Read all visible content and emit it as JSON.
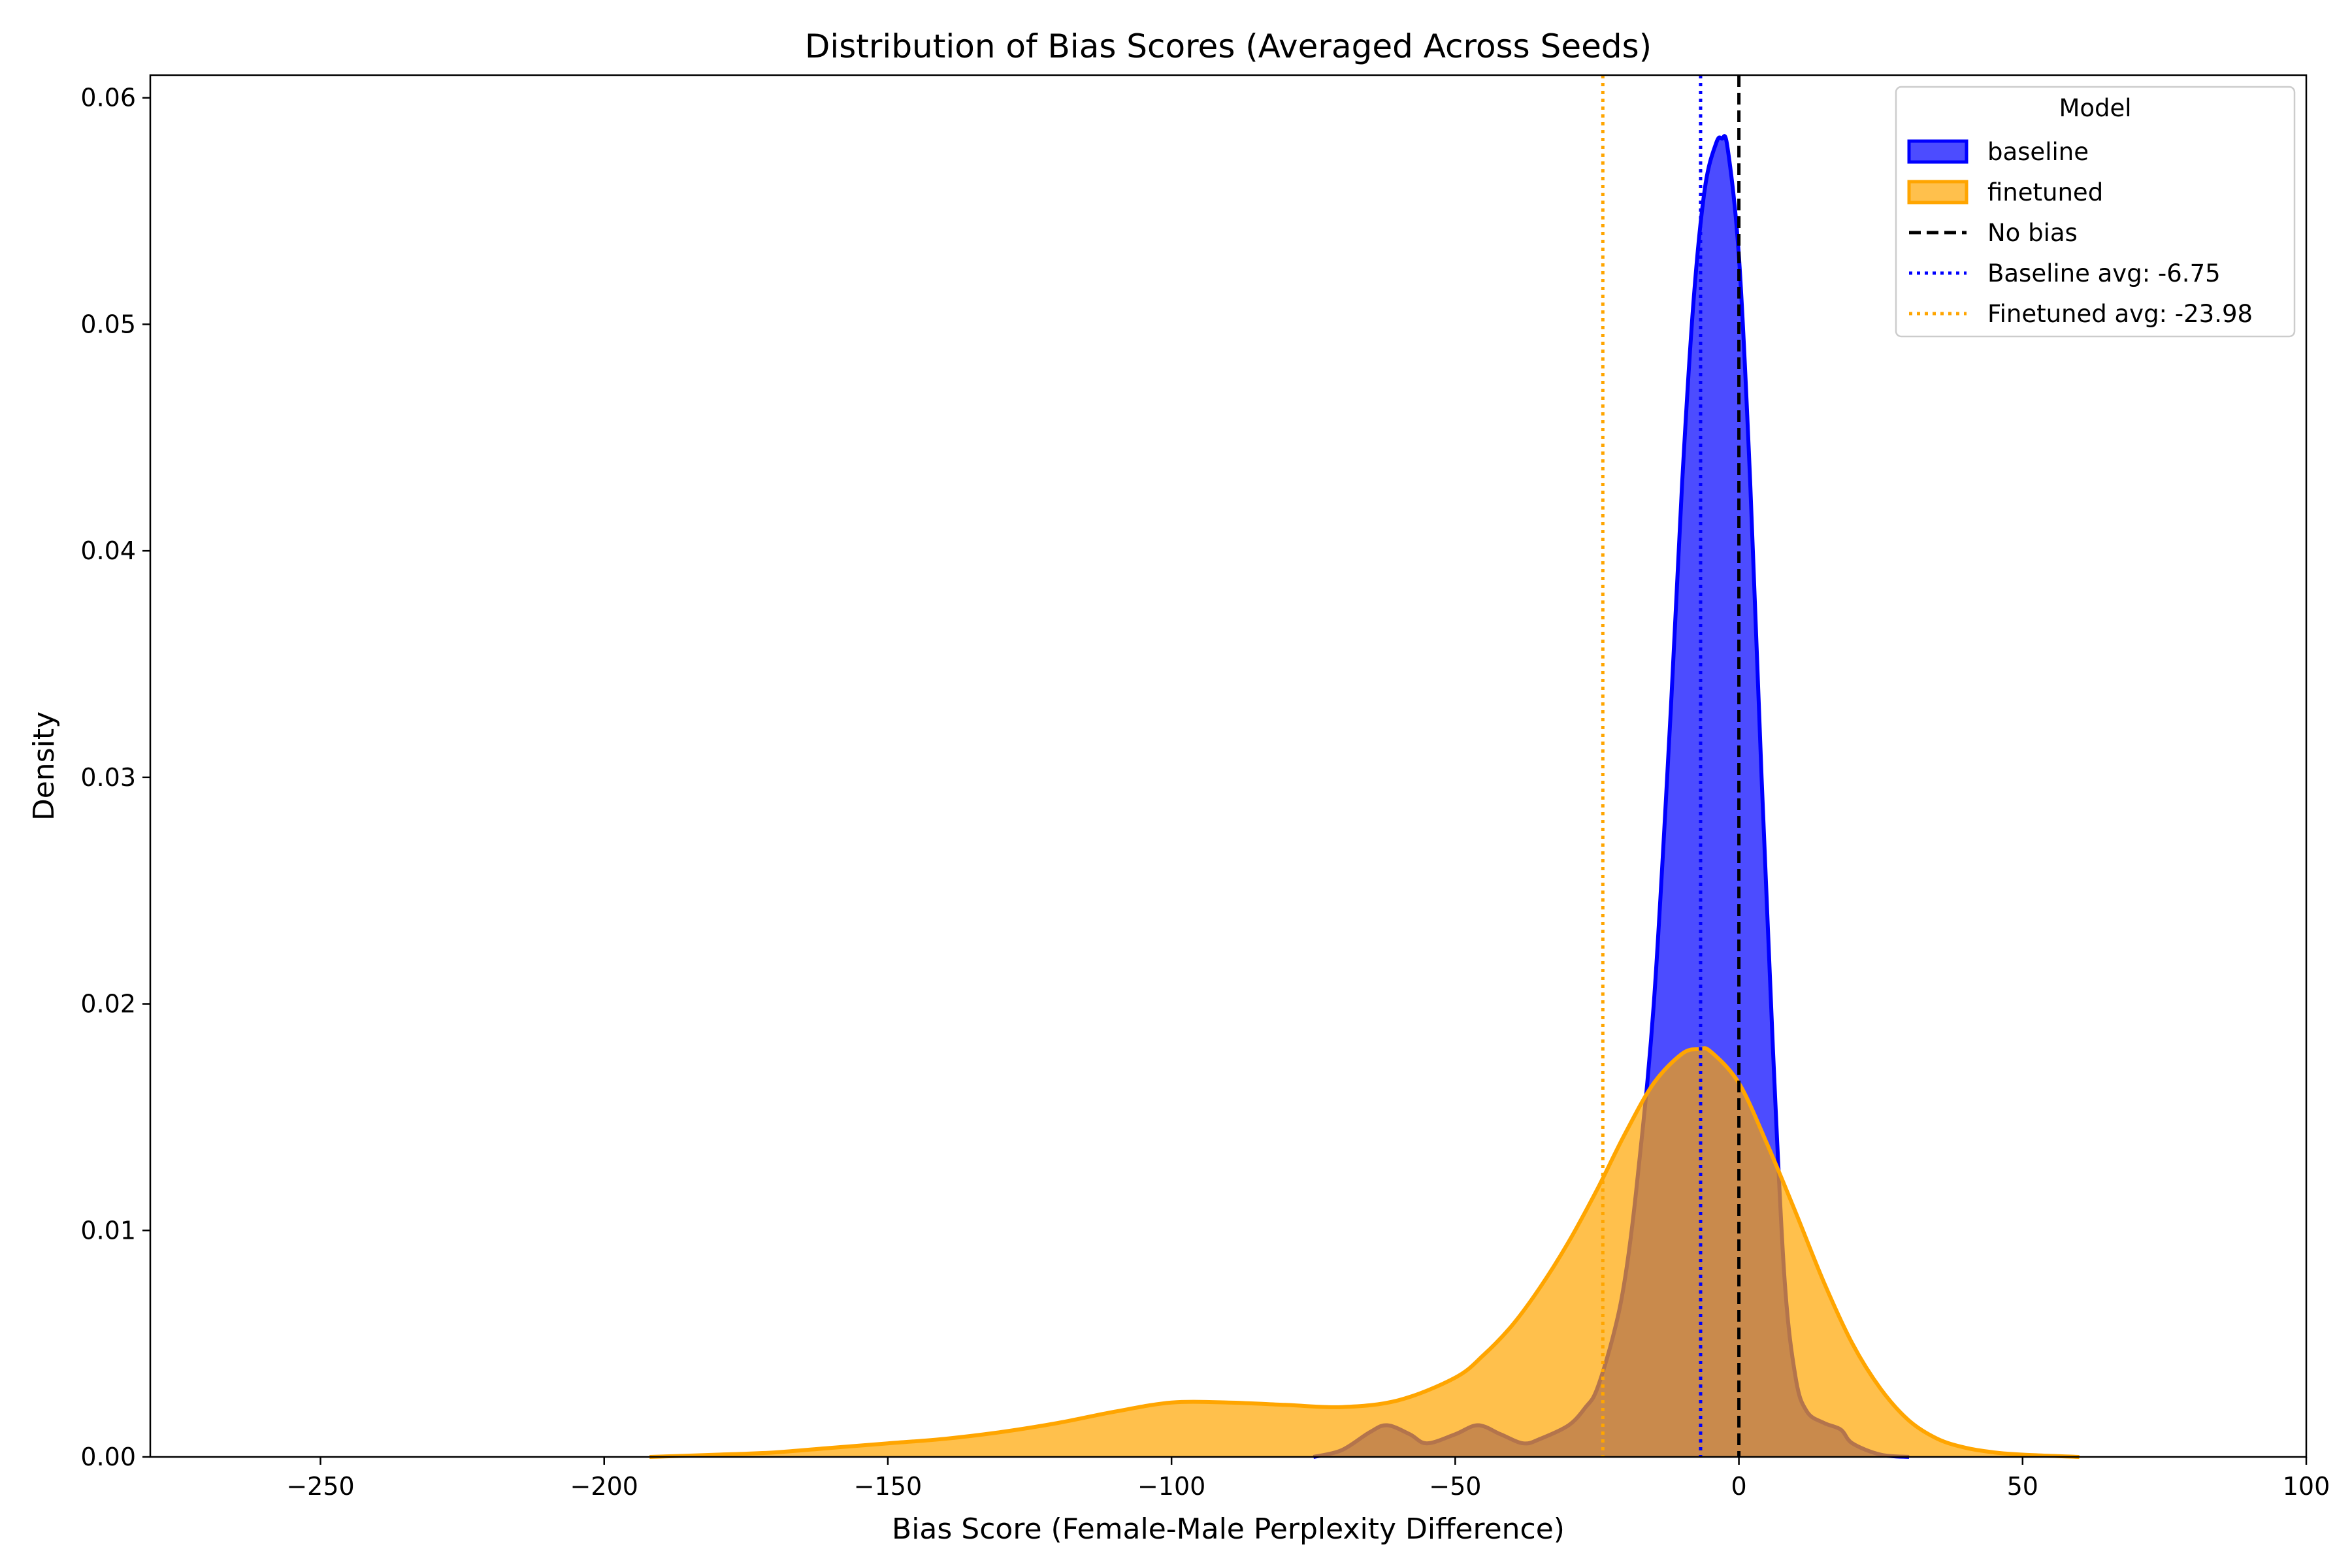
{
  "chart_data": {
    "type": "area",
    "title": "Distribution of Bias Scores (Averaged Across Seeds)",
    "xlabel": "Bias Score (Female-Male Perplexity Difference)",
    "ylabel": "Density",
    "xlim": [
      -280,
      100
    ],
    "ylim": [
      0,
      0.061
    ],
    "x_ticks": [
      -250,
      -200,
      -150,
      -100,
      -50,
      0,
      50,
      100
    ],
    "x_tick_labels": [
      "−250",
      "−200",
      "−150",
      "−100",
      "−50",
      "0",
      "50",
      "100"
    ],
    "y_ticks": [
      0.0,
      0.01,
      0.02,
      0.03,
      0.04,
      0.05,
      0.06
    ],
    "y_tick_labels": [
      "0.00",
      "0.01",
      "0.02",
      "0.03",
      "0.04",
      "0.05",
      "0.06"
    ],
    "grid": false,
    "legend": {
      "title": "Model",
      "position": "top-right",
      "entries": [
        {
          "label": "baseline",
          "kind": "patch",
          "color": "#0000ff"
        },
        {
          "label": "finetuned",
          "kind": "patch",
          "color": "#ffa500"
        },
        {
          "label": "No bias",
          "kind": "line",
          "style": "dashed",
          "color": "#000000"
        },
        {
          "label": "Baseline avg: -6.75",
          "kind": "line",
          "style": "dotted",
          "color": "#0000ff"
        },
        {
          "label": "Finetuned avg: -23.98",
          "kind": "line",
          "style": "dotted",
          "color": "#ffa500"
        }
      ]
    },
    "series": [
      {
        "name": "baseline",
        "color": "#0000ff",
        "fill_opacity": 0.7,
        "x": [
          -75,
          -70,
          -65,
          -62,
          -58,
          -55,
          -50,
          -46,
          -42,
          -38,
          -35,
          -30,
          -27,
          -25,
          -22,
          -20,
          -18,
          -15,
          -12,
          -10,
          -8,
          -6,
          -4,
          -3,
          -2,
          0,
          2,
          4,
          6,
          8,
          10,
          12,
          15,
          18,
          20,
          25,
          30
        ],
        "y": [
          0.0,
          0.0003,
          0.0011,
          0.0014,
          0.001,
          0.0006,
          0.001,
          0.0014,
          0.001,
          0.0006,
          0.0008,
          0.0014,
          0.0022,
          0.003,
          0.0055,
          0.008,
          0.012,
          0.02,
          0.033,
          0.043,
          0.051,
          0.056,
          0.058,
          0.0582,
          0.0578,
          0.053,
          0.043,
          0.03,
          0.018,
          0.008,
          0.0035,
          0.002,
          0.0015,
          0.0012,
          0.0006,
          0.0001,
          0.0
        ]
      },
      {
        "name": "finetuned",
        "color": "#ffa500",
        "fill_opacity": 0.7,
        "x": [
          -192,
          -180,
          -170,
          -160,
          -150,
          -140,
          -130,
          -120,
          -110,
          -100,
          -90,
          -80,
          -70,
          -60,
          -50,
          -45,
          -40,
          -35,
          -30,
          -25,
          -20,
          -15,
          -10,
          -7,
          -5,
          0,
          5,
          10,
          15,
          20,
          25,
          30,
          35,
          40,
          45,
          50,
          60
        ],
        "y": [
          0.0,
          0.0001,
          0.0002,
          0.0004,
          0.0006,
          0.0008,
          0.0011,
          0.0015,
          0.002,
          0.0024,
          0.0024,
          0.0023,
          0.0022,
          0.0025,
          0.0035,
          0.0045,
          0.0058,
          0.0075,
          0.0095,
          0.0118,
          0.0143,
          0.0165,
          0.0178,
          0.018,
          0.0179,
          0.0165,
          0.0138,
          0.0108,
          0.0077,
          0.005,
          0.003,
          0.0016,
          0.0008,
          0.0004,
          0.0002,
          0.0001,
          0.0
        ]
      }
    ],
    "reference_lines": [
      {
        "name": "No bias",
        "x": 0,
        "style": "dashed",
        "color": "#000000"
      },
      {
        "name": "Baseline avg: -6.75",
        "x": -6.75,
        "style": "dotted",
        "color": "#0000ff"
      },
      {
        "name": "Finetuned avg: -23.98",
        "x": -23.98,
        "style": "dotted",
        "color": "#ffa500"
      }
    ]
  }
}
